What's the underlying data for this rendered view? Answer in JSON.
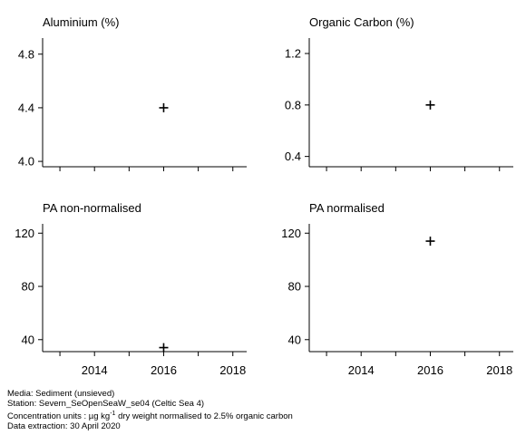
{
  "chart_data": [
    {
      "type": "scatter",
      "title": "Aluminium (%)",
      "x": [
        2016
      ],
      "y": [
        4.4
      ],
      "xlim": [
        2012.5,
        2018.4
      ],
      "ylim": [
        3.96,
        4.92
      ],
      "yticks": [
        "4.0",
        "4.4",
        "4.8"
      ],
      "ytick_values": [
        4.0,
        4.4,
        4.8
      ],
      "xticks": [],
      "xtick_values": [],
      "xminor": [
        2013,
        2014,
        2015,
        2016,
        2017,
        2018
      ],
      "marker": "plus",
      "grid": false
    },
    {
      "type": "scatter",
      "title": "Organic Carbon (%)",
      "x": [
        2016
      ],
      "y": [
        0.8
      ],
      "xlim": [
        2012.5,
        2018.4
      ],
      "ylim": [
        0.32,
        1.32
      ],
      "yticks": [
        "0.4",
        "0.8",
        "1.2"
      ],
      "ytick_values": [
        0.4,
        0.8,
        1.2
      ],
      "xticks": [],
      "xtick_values": [],
      "xminor": [
        2013,
        2014,
        2015,
        2016,
        2017,
        2018
      ],
      "marker": "plus",
      "grid": false
    },
    {
      "type": "scatter",
      "title": "PA non-normalised",
      "x": [
        2016
      ],
      "y": [
        34
      ],
      "xlim": [
        2012.5,
        2018.4
      ],
      "ylim": [
        31,
        127
      ],
      "yticks": [
        "40",
        "80",
        "120"
      ],
      "ytick_values": [
        40,
        80,
        120
      ],
      "xticks": [
        "2014",
        "2016",
        "2018"
      ],
      "xtick_values": [
        2014,
        2016,
        2018
      ],
      "xminor": [
        2013,
        2014,
        2015,
        2016,
        2017,
        2018
      ],
      "marker": "plus",
      "grid": false
    },
    {
      "type": "scatter",
      "title": "PA normalised",
      "x": [
        2016
      ],
      "y": [
        114
      ],
      "xlim": [
        2012.5,
        2018.4
      ],
      "ylim": [
        31,
        127
      ],
      "yticks": [
        "40",
        "80",
        "120"
      ],
      "ytick_values": [
        40,
        80,
        120
      ],
      "xticks": [
        "2014",
        "2016",
        "2018"
      ],
      "xtick_values": [
        2014,
        2016,
        2018
      ],
      "xminor": [
        2013,
        2014,
        2015,
        2016,
        2017,
        2018
      ],
      "marker": "plus",
      "grid": false
    }
  ],
  "footer": {
    "media": "Media: Sediment (unsieved)",
    "station": "Station: Severn_SeOpenSeaW_se04 (Celtic Sea 4)",
    "units_prefix": "Concentration units : µg kg",
    "units_sup": "-1",
    "units_suffix": " dry weight normalised to 2.5% organic carbon",
    "extraction": "Data extraction: 30 April 2020"
  }
}
